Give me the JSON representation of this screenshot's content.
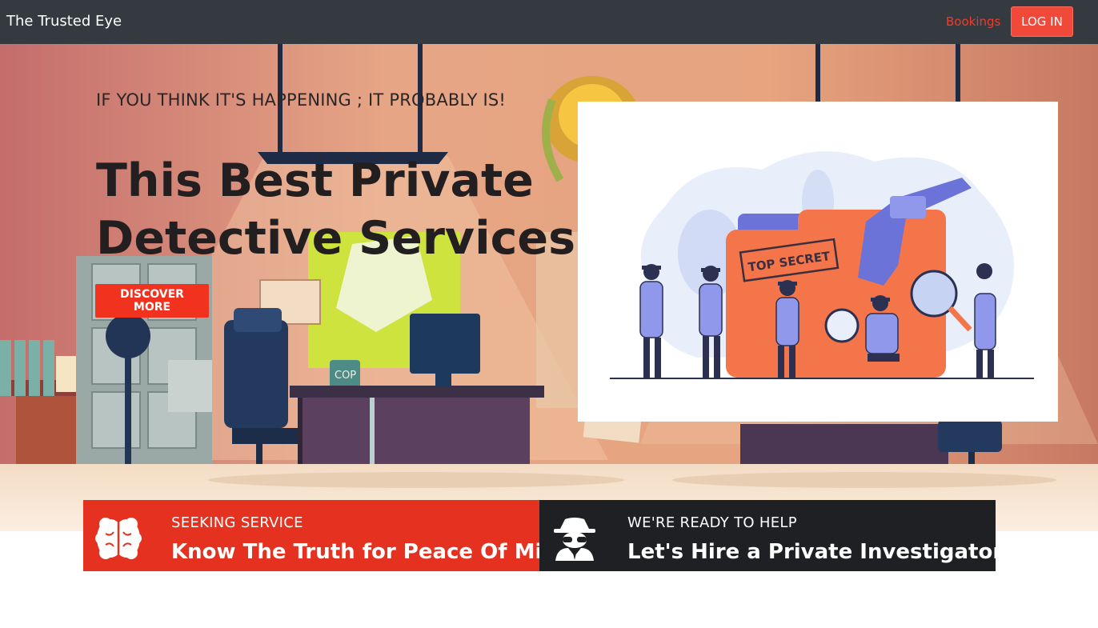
{
  "navbar": {
    "brand": "The Trusted Eye",
    "bookings_label": "Bookings",
    "login_label": "LOG IN"
  },
  "hero": {
    "tagline": "IF YOU THINK IT'S HAPPENING ; IT PROBABLY IS!",
    "headline": "This Best Private Detective Services",
    "cta_label": "DISCOVER MORE",
    "illustration_stamp": "TOP SECRET",
    "mug_label": "COP"
  },
  "features": [
    {
      "icon": "brain-icon",
      "kicker": "SEEKING SERVICE",
      "title": "Know The Truth for Peace Of Mind"
    },
    {
      "icon": "spy-icon",
      "kicker": "WE'RE READY TO HELP",
      "title": "Let's Hire a Private Investigator"
    }
  ],
  "colors": {
    "navbar_bg": "#343a40",
    "accent_red": "#e5311f",
    "dark_panel": "#1f2023"
  }
}
